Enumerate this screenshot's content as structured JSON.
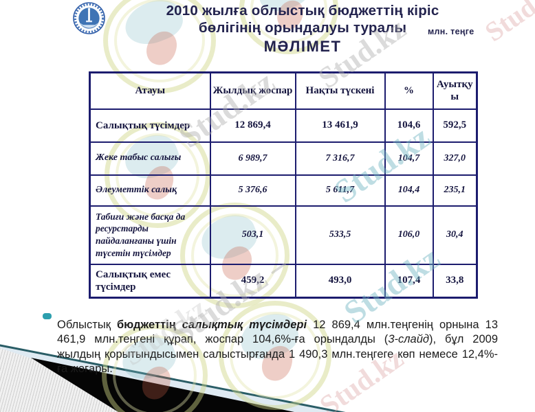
{
  "slide": {
    "title_lines": [
      "2010 жылға облыстық бюджеттің кіріс",
      "бөлігінің орындалуы туралы",
      "МӘЛІМЕТ"
    ],
    "unit_label": "млн. теңге"
  },
  "table": {
    "headers": [
      "Атауы",
      "Жылдық жоспар",
      "Нақты түскені",
      "%",
      "Ауытқуы"
    ],
    "rows": [
      {
        "name": "Салықтық түсімдер",
        "plan": "12 869,4",
        "actual": "13 461,9",
        "percent": "104,6",
        "deviation": "592,5",
        "emphasis": "bold"
      },
      {
        "name": "Жеке табыс салығы",
        "plan": "6 989,7",
        "actual": "7 316,7",
        "percent": "104,7",
        "deviation": "327,0",
        "emphasis": "italic"
      },
      {
        "name": "Әлеуметтік салық",
        "plan": "5 376,6",
        "actual": "5 611,7",
        "percent": "104,4",
        "deviation": "235,1",
        "emphasis": "italic"
      },
      {
        "name": "Табиғи және басқа да ресурстарды пайдаланғаны үшін түсетін түсімдер",
        "plan": "503,1",
        "actual": "533,5",
        "percent": "106,0",
        "deviation": "30,4",
        "emphasis": "italic"
      },
      {
        "name": "Салықтық емес түсімдер",
        "plan": "459,2",
        "actual": "493,0",
        "percent": "107,4",
        "deviation": "33,8",
        "emphasis": "bold"
      }
    ]
  },
  "summary": {
    "segments": [
      {
        "text": "Облыстық ",
        "style": "normal"
      },
      {
        "text": "бюджеттің",
        "style": "bold"
      },
      {
        "text": " ",
        "style": "normal"
      },
      {
        "text": "салықтық түсімдері",
        "style": "bold-italic"
      },
      {
        "text": " 12 869,4 млн.теңгенің орнына 13 461,9 млн.теңгені құрап, жоспар 104,6%-ға орындалды (",
        "style": "normal"
      },
      {
        "text": "3-слайд",
        "style": "italic"
      },
      {
        "text": "), бұл 2009 жылдың қорытындысымен салыстырғанда 1 490,3 млн.теңгеге көп немесе 12,4%-ға жоғары.",
        "style": "normal"
      }
    ]
  },
  "watermark": {
    "label": "Stud.kz",
    "label_dash": "Stud.kz –"
  },
  "colors": {
    "table_border": "#1c1c6e",
    "table_text": "#15153f",
    "title_text": "#23234e",
    "bullet_teal": "#2d9fae",
    "corner_teal_line": "#2a5d66",
    "corner_blue_band": "#dfeaf2",
    "watermark_teal": "#6eb4c0",
    "watermark_pink": "#deaaaa"
  }
}
